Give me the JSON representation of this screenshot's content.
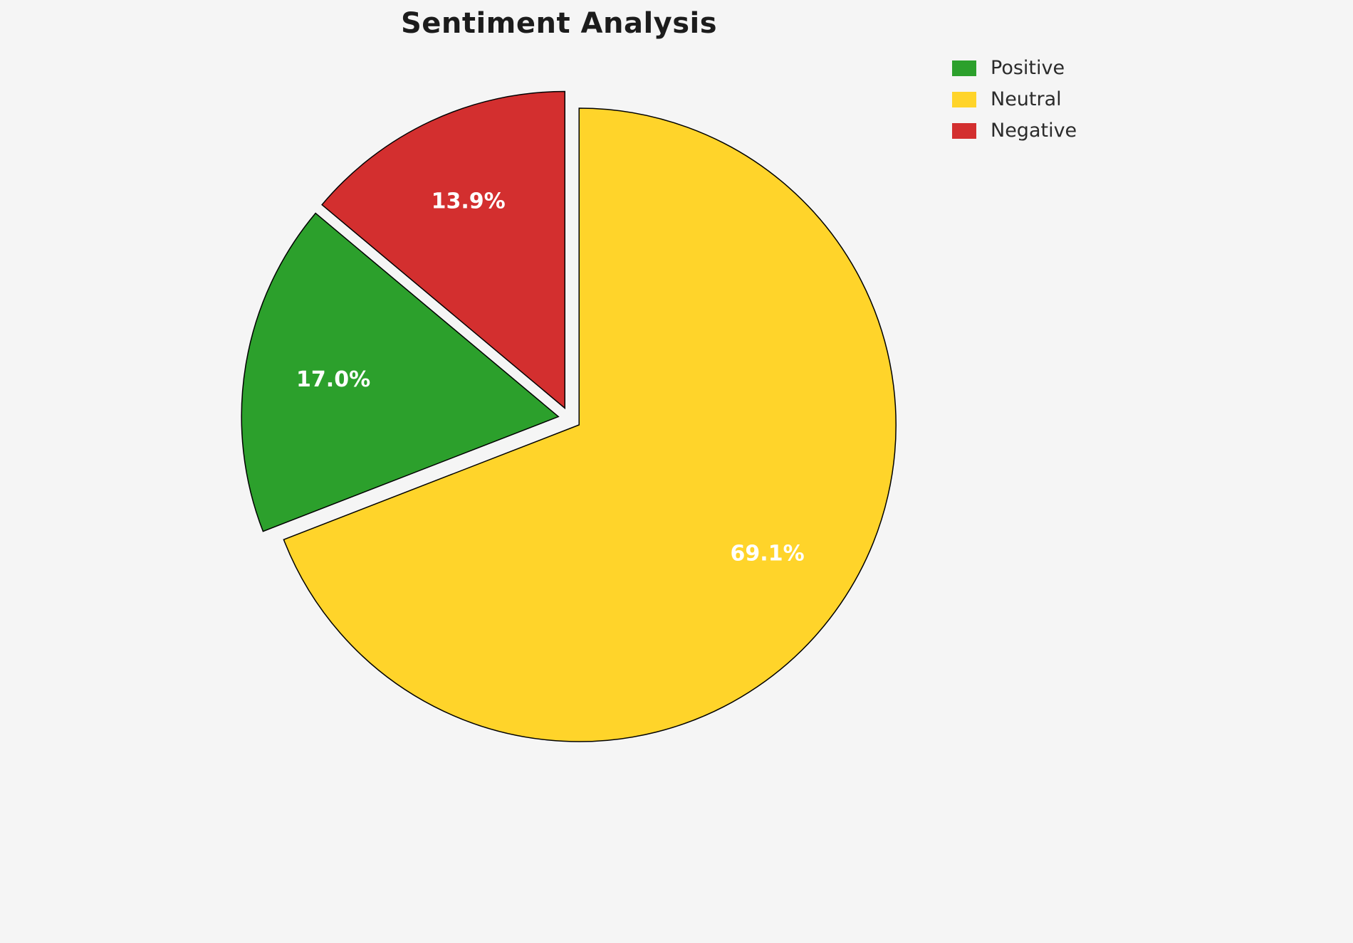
{
  "chart_data": {
    "type": "pie",
    "title": "Sentiment Analysis",
    "labels": [
      "Positive",
      "Neutral",
      "Negative"
    ],
    "values": [
      17.0,
      69.1,
      13.9
    ],
    "value_labels": [
      "17.0%",
      "69.1%",
      "13.9%"
    ],
    "colors": [
      "#2ca02c",
      "#ffd42a",
      "#d32f2f"
    ],
    "slice_edge_color": "#000000",
    "pct_label_color": "#ffffff",
    "background_color": "#f5f5f5",
    "legend_position": "upper right",
    "start_angle_deg": 90,
    "direction": "counterclockwise",
    "explode": [
      0.04,
      0.04,
      0.04
    ]
  }
}
